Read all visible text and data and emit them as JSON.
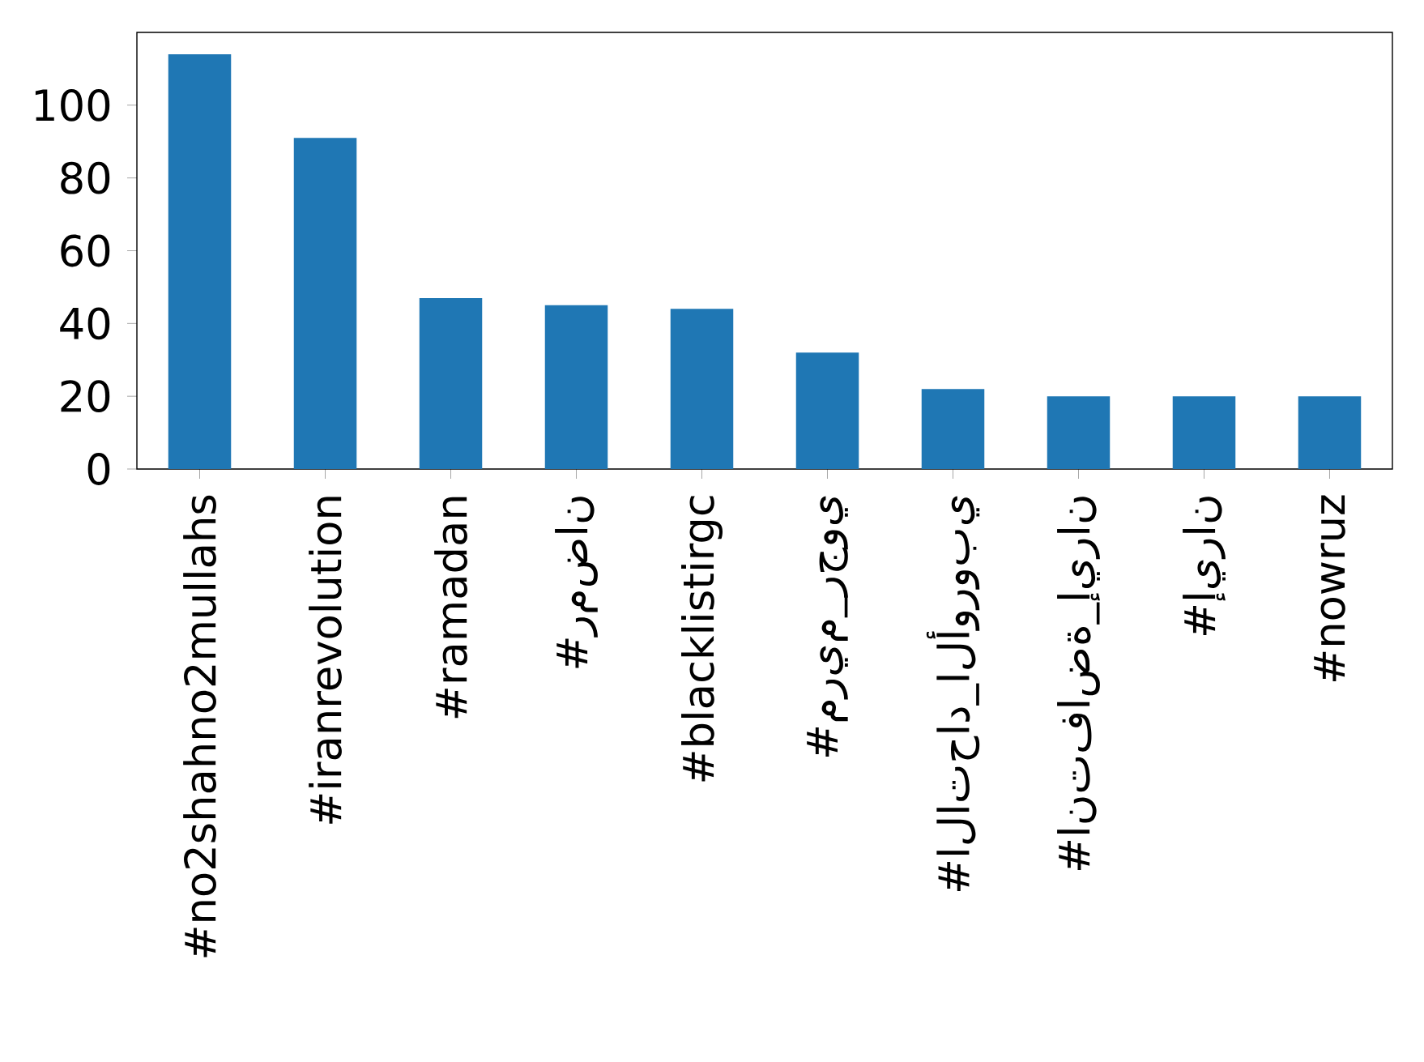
{
  "chart_data": {
    "type": "bar",
    "categories": [
      "#no2shahno2mullahs",
      "#iranrevolution",
      "#ramadan",
      "#رمضان",
      "#blacklistirgc",
      "#مريم_رجوي",
      "#الاتحاد_الأوروبي",
      "#انتفاضة_إيران",
      "#إيران",
      "#nowruz"
    ],
    "values": [
      114,
      91,
      47,
      45,
      44,
      32,
      22,
      20,
      20,
      20
    ],
    "color": "#1f77b4",
    "ylim": [
      0,
      120
    ],
    "yticks": [
      0,
      20,
      40,
      60,
      80,
      100
    ]
  }
}
